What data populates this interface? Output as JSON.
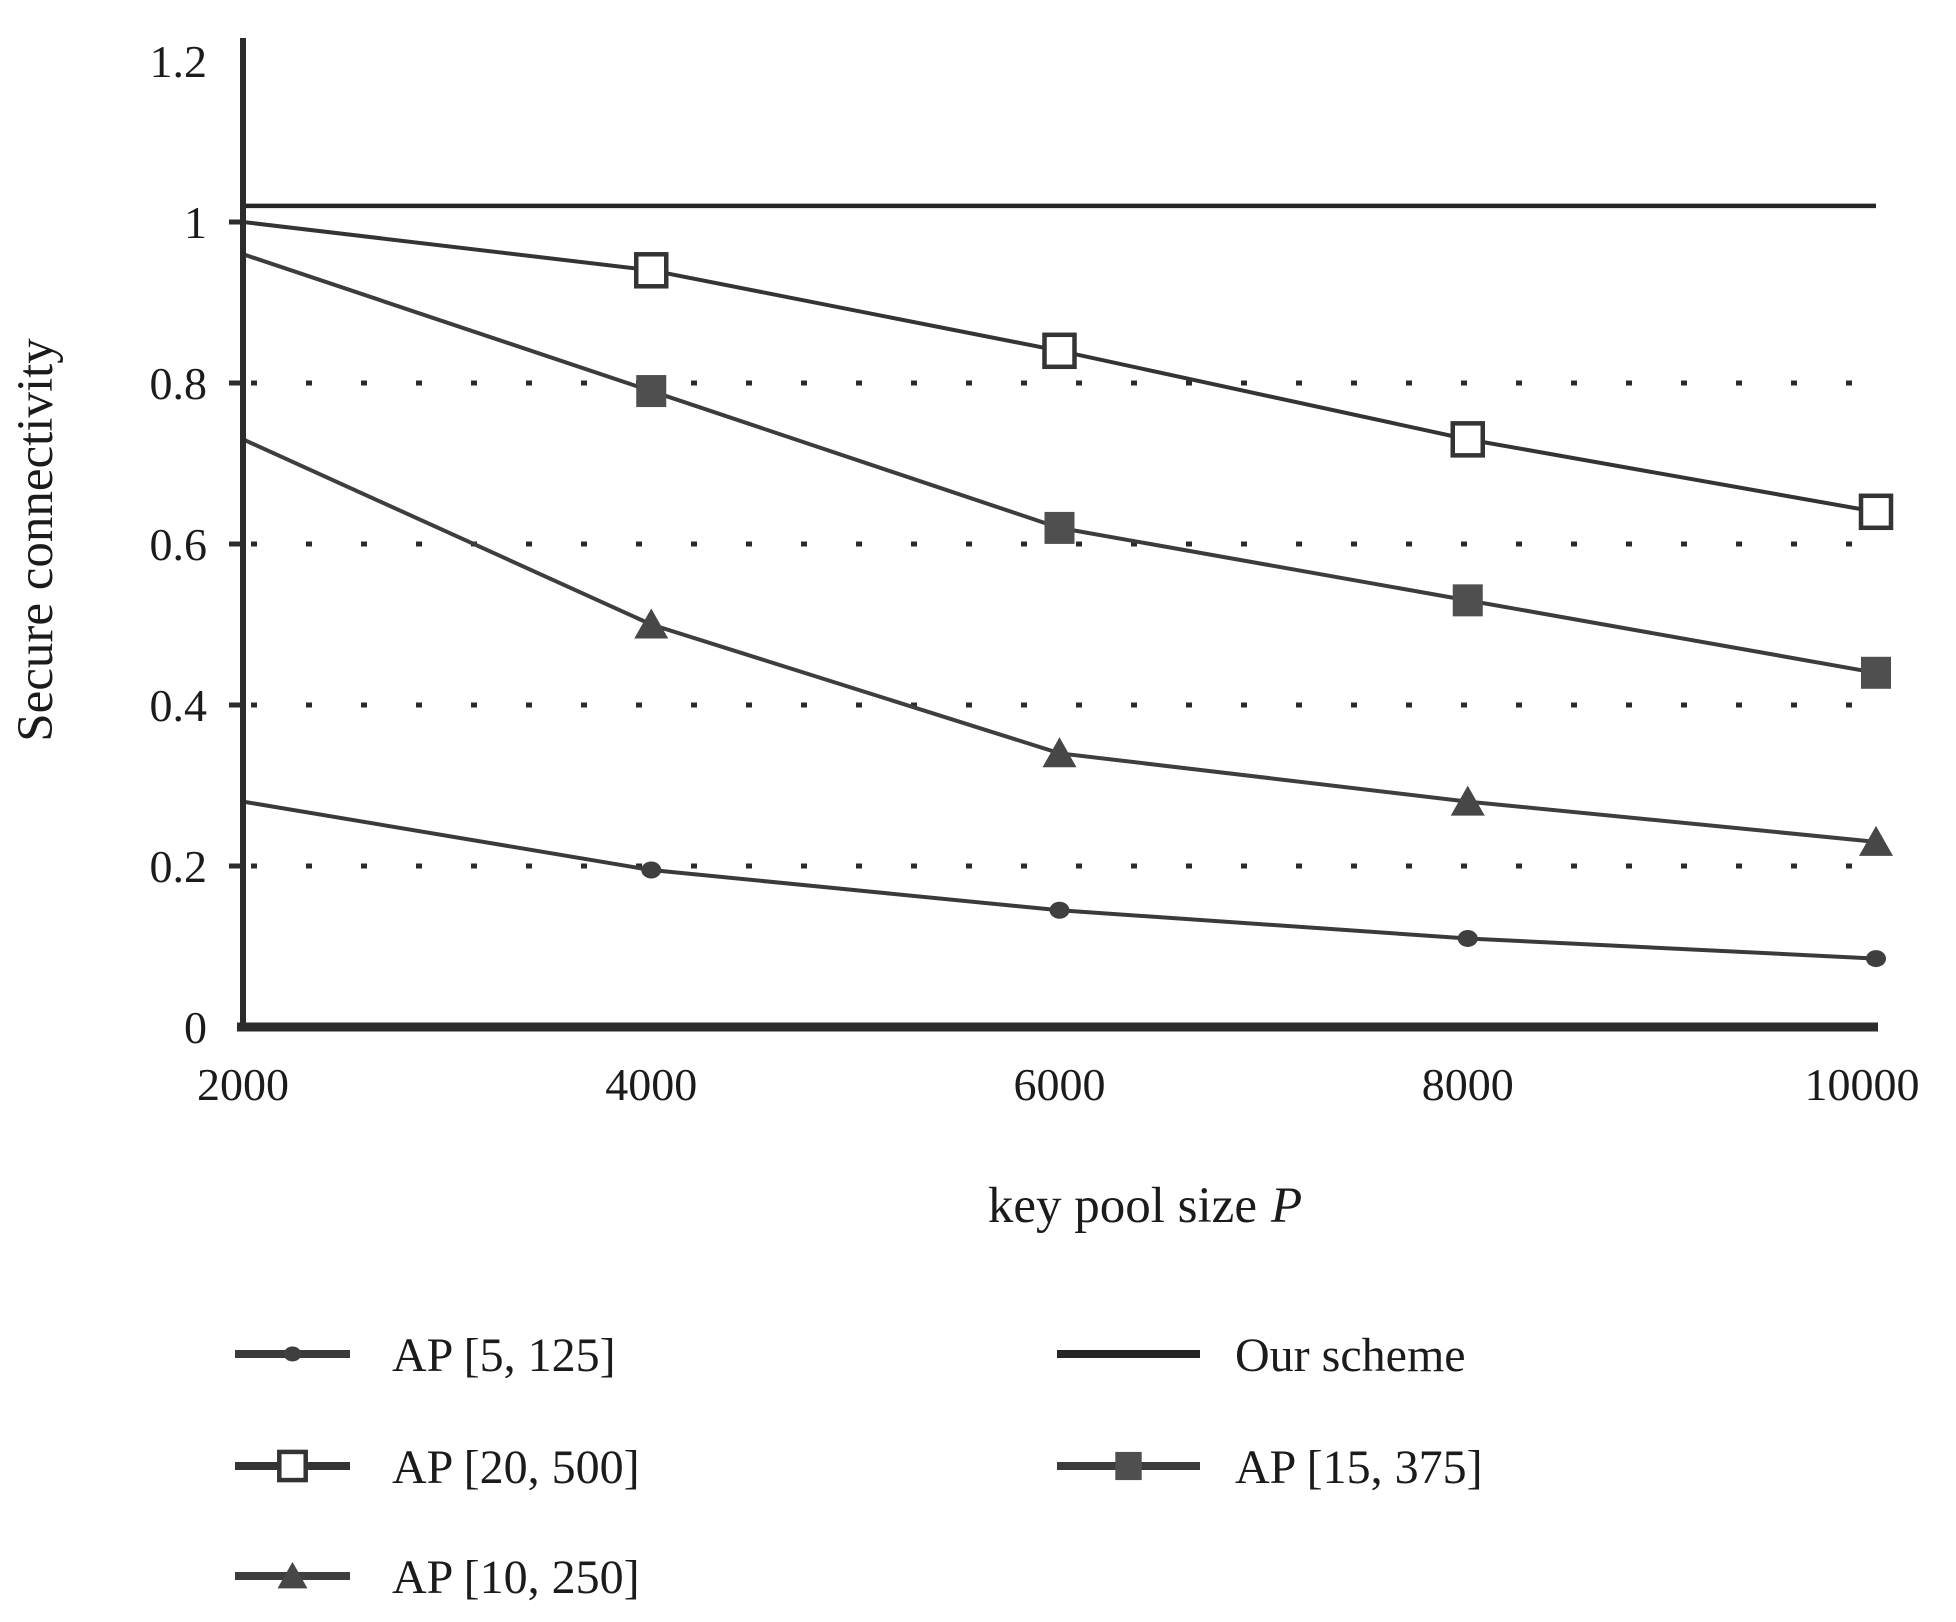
{
  "figure": {
    "background": "#ffffff",
    "text_color": "#1b1b1b",
    "axis_color": "#2c2c2c",
    "grid_color": "#2a2a2a"
  },
  "chart_data": {
    "type": "line",
    "title": "",
    "xlabel": "key pool size P",
    "xlabel_parts": {
      "text": "key pool size",
      "symbol": "P"
    },
    "ylabel": "Secure connectivity",
    "x": [
      2000,
      4000,
      6000,
      8000,
      10000
    ],
    "x_tick_labels": [
      "2000",
      "4000",
      "6000",
      "8000",
      "10000"
    ],
    "y_ticks": [
      0,
      0.2,
      0.4,
      0.6,
      0.8,
      1,
      1.2
    ],
    "y_tick_labels": [
      "0",
      "0.2",
      "0.4",
      "0.6",
      "0.8",
      "1",
      "1.2"
    ],
    "xlim": [
      2000,
      10000
    ],
    "ylim": [
      0,
      1.2
    ],
    "grid": "horizontal dotted lines at 0.2, 0.4, 0.6, 0.8",
    "legend_position": "below plot, two columns",
    "series": [
      {
        "name": "Our scheme",
        "marker": "none",
        "color": "#262626",
        "marker_color": "#262626",
        "values": [
          1.02,
          1.02,
          1.02,
          1.02,
          1.02
        ]
      },
      {
        "name": "AP [20, 500]",
        "marker": "open-square",
        "color": "#343434",
        "marker_color": "#ffffff",
        "values": [
          1.0,
          0.94,
          0.84,
          0.73,
          0.64
        ]
      },
      {
        "name": "AP [15, 375]",
        "marker": "filled-square",
        "color": "#3c3c3c",
        "marker_color": "#4f4f4f",
        "values": [
          0.96,
          0.79,
          0.62,
          0.53,
          0.44
        ]
      },
      {
        "name": "AP [10, 250]",
        "marker": "filled-triangle",
        "color": "#3e3e3e",
        "marker_color": "#474747",
        "values": [
          0.73,
          0.5,
          0.34,
          0.28,
          0.23
        ]
      },
      {
        "name": "AP [5, 125]",
        "marker": "dot",
        "color": "#3a3a3a",
        "marker_color": "#3f3f3f",
        "values": [
          0.28,
          0.195,
          0.145,
          0.11,
          0.085
        ]
      }
    ],
    "legend": {
      "columns": [
        [
          "AP [5, 125]",
          "AP [20, 500]",
          "AP [10, 250]"
        ],
        [
          "Our scheme",
          "AP [15, 375]"
        ]
      ]
    }
  }
}
